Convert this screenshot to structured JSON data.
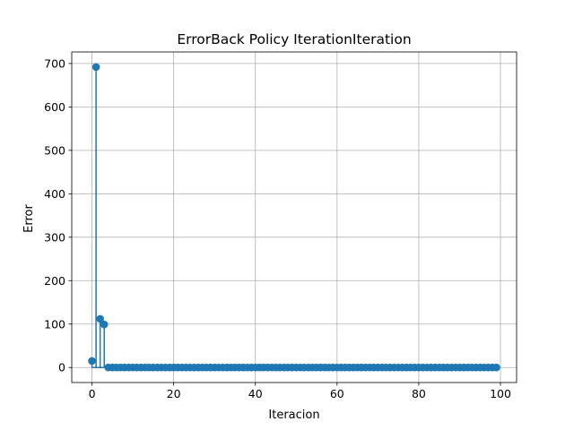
{
  "chart_data": {
    "type": "stem",
    "title": "ErrorBack Policy IterationIteration",
    "xlabel": "Iteracion",
    "ylabel": "Error",
    "xlim": [
      -4.95,
      103.95
    ],
    "ylim": [
      -34.6,
      726.6
    ],
    "xticks": [
      0,
      20,
      40,
      60,
      80,
      100
    ],
    "yticks": [
      0,
      100,
      200,
      300,
      400,
      500,
      600,
      700
    ],
    "grid": true,
    "series": [
      {
        "color": "#1f77b4",
        "x": [
          0,
          1,
          2,
          3,
          4,
          5,
          6,
          7,
          8,
          9,
          10,
          11,
          12,
          13,
          14,
          15,
          16,
          17,
          18,
          19,
          20,
          21,
          22,
          23,
          24,
          25,
          26,
          27,
          28,
          29,
          30,
          31,
          32,
          33,
          34,
          35,
          36,
          37,
          38,
          39,
          40,
          41,
          42,
          43,
          44,
          45,
          46,
          47,
          48,
          49,
          50,
          51,
          52,
          53,
          54,
          55,
          56,
          57,
          58,
          59,
          60,
          61,
          62,
          63,
          64,
          65,
          66,
          67,
          68,
          69,
          70,
          71,
          72,
          73,
          74,
          75,
          76,
          77,
          78,
          79,
          80,
          81,
          82,
          83,
          84,
          85,
          86,
          87,
          88,
          89,
          90,
          91,
          92,
          93,
          94,
          95,
          96,
          97,
          98,
          99
        ],
        "values": [
          15,
          692,
          112,
          99,
          0,
          0,
          0,
          0,
          0,
          0,
          0,
          0,
          0,
          0,
          0,
          0,
          0,
          0,
          0,
          0,
          0,
          0,
          0,
          0,
          0,
          0,
          0,
          0,
          0,
          0,
          0,
          0,
          0,
          0,
          0,
          0,
          0,
          0,
          0,
          0,
          0,
          0,
          0,
          0,
          0,
          0,
          0,
          0,
          0,
          0,
          0,
          0,
          0,
          0,
          0,
          0,
          0,
          0,
          0,
          0,
          0,
          0,
          0,
          0,
          0,
          0,
          0,
          0,
          0,
          0,
          0,
          0,
          0,
          0,
          0,
          0,
          0,
          0,
          0,
          0,
          0,
          0,
          0,
          0,
          0,
          0,
          0,
          0,
          0,
          0,
          0,
          0,
          0,
          0,
          0,
          0,
          0,
          0,
          0,
          0
        ]
      }
    ]
  }
}
